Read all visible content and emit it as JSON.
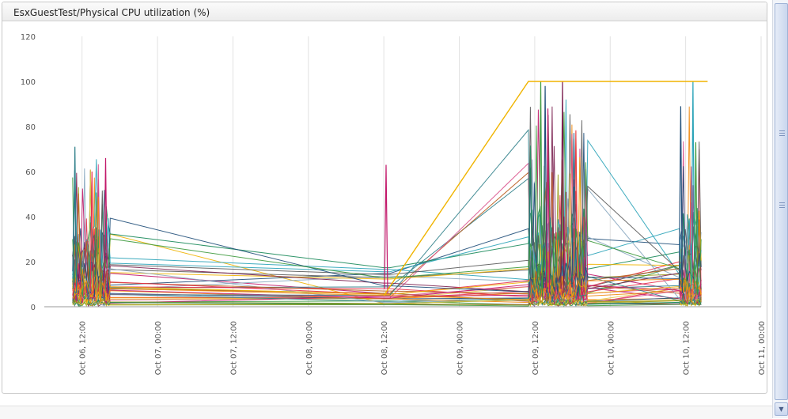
{
  "panel": {
    "title": "EsxGuestTest/Physical CPU utilization (%)"
  },
  "colors": {
    "grid": "#e2e2e2",
    "axis": "#999999",
    "tick_text": "#555555",
    "series_palette": [
      "#e8304a",
      "#c2186a",
      "#f0b400",
      "#2f7f8a",
      "#1f4e79",
      "#9a9a1a",
      "#3d9a3d",
      "#f08a10",
      "#7a1f4f",
      "#2aa3b8",
      "#8aa8c0",
      "#b85a1a",
      "#d94f8a",
      "#5a5a5a",
      "#1a8a5a",
      "#e6c84a"
    ]
  },
  "chart_data": {
    "type": "line",
    "title": "EsxGuestTest/Physical CPU utilization (%)",
    "ylim": [
      0,
      120
    ],
    "yticks": [
      0,
      20,
      40,
      60,
      80,
      100,
      120
    ],
    "xlim": [
      "2012-10-06 06:00",
      "2012-10-11 00:00"
    ],
    "xtick_labels": [
      "Oct 06, 12:00",
      "Oct 07, 00:00",
      "Oct 07, 12:00",
      "Oct 08, 00:00",
      "Oct 08, 12:00",
      "Oct 09, 00:00",
      "Oct 09, 12:00",
      "Oct 10, 00:00",
      "Oct 10, 12:00",
      "Oct 11, 00:00"
    ],
    "grid": "vertical",
    "legend": "none",
    "series_count_approx": 40,
    "activity_bursts": [
      {
        "start": "2012-10-06 10:30",
        "end": "2012-10-06 16:30",
        "peak": 71
      },
      {
        "start": "2012-10-08 12:00",
        "end": "2012-10-08 13:00",
        "peak": 63
      },
      {
        "start": "2012-10-09 11:00",
        "end": "2012-10-09 20:30",
        "peak": 100
      },
      {
        "start": "2012-10-10 11:00",
        "end": "2012-10-10 14:30",
        "peak": 100
      }
    ],
    "saturated_series": {
      "x": [
        "2012-10-08 12:00",
        "2012-10-09 11:00",
        "2012-10-10 15:30"
      ],
      "values": [
        5,
        100,
        100
      ]
    }
  }
}
